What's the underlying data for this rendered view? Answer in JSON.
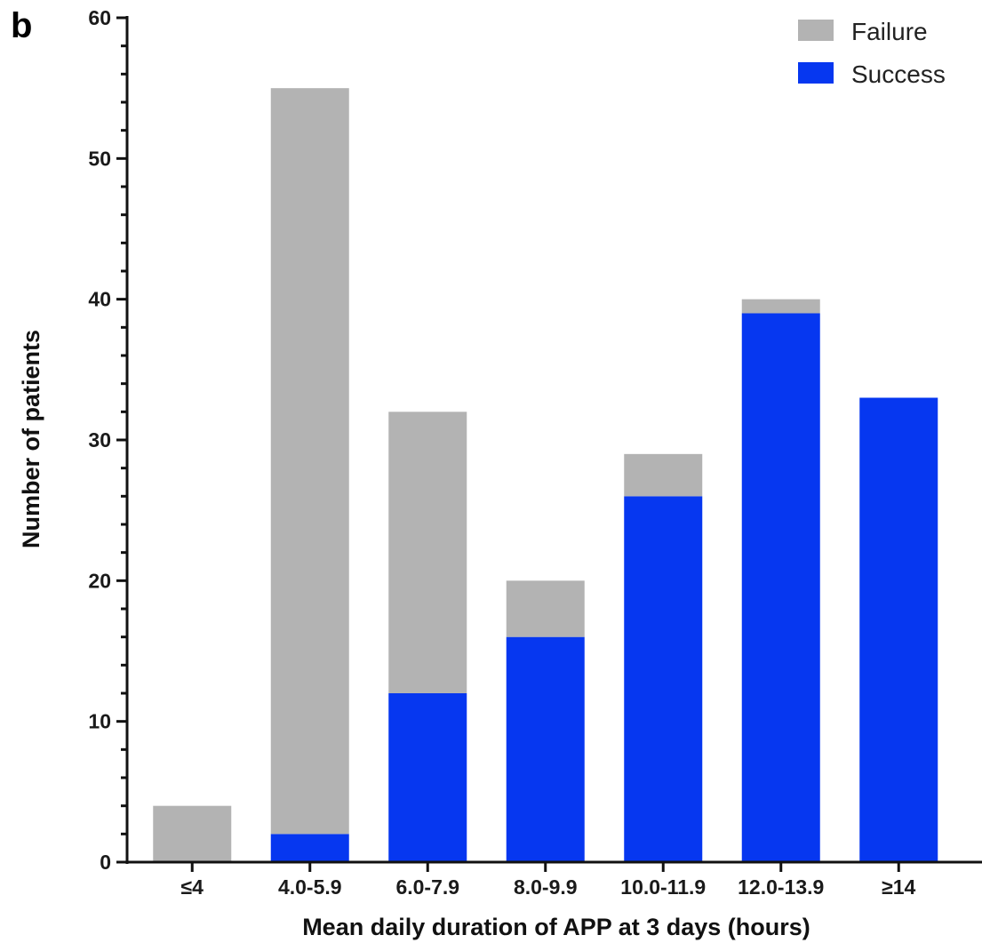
{
  "panel_label": "b",
  "colors": {
    "failure": "#b3b3b3",
    "success": "#0637f0",
    "axis": "#111111"
  },
  "chart_data": {
    "type": "bar",
    "stacked": true,
    "categories": [
      "≤4",
      "4.0-5.9",
      "6.0-7.9",
      "8.0-9.9",
      "10.0-11.9",
      "12.0-13.9",
      "≥14"
    ],
    "series": [
      {
        "name": "Success",
        "values": [
          0,
          2,
          12,
          16,
          26,
          39,
          33
        ]
      },
      {
        "name": "Failure",
        "values": [
          4,
          53,
          20,
          4,
          3,
          1,
          0
        ]
      }
    ],
    "totals": [
      4,
      55,
      32,
      20,
      29,
      40,
      33
    ],
    "xlabel": "Mean daily duration of APP at 3 days (hours)",
    "ylabel": "Number of patients",
    "ylim": [
      0,
      60
    ],
    "yticks": [
      0,
      10,
      20,
      30,
      40,
      50,
      60
    ],
    "grid": false,
    "legend_position": "top-right",
    "legend": [
      "Failure",
      "Success"
    ]
  }
}
